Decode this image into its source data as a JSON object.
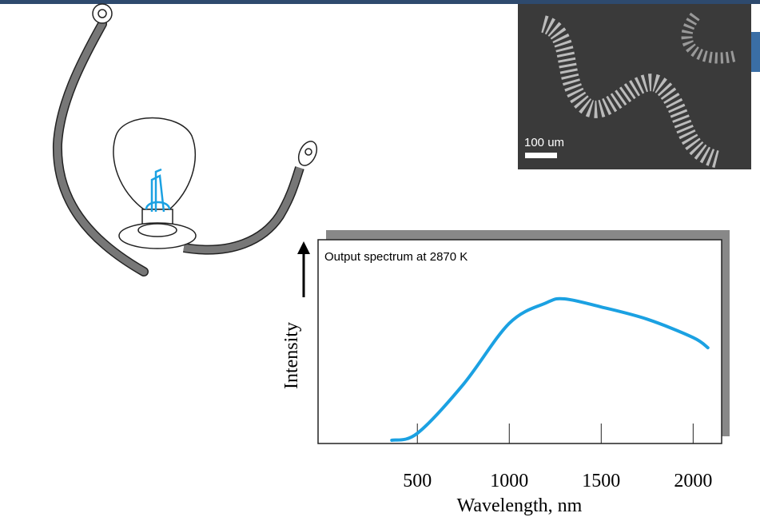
{
  "chart_data": {
    "type": "line",
    "title": "Output spectrum at 2870 K",
    "x_label": "Wavelength, nm",
    "y_label": "Intensity",
    "x": [
      361,
      500,
      750,
      1000,
      1200,
      1300,
      1500,
      1750,
      2000,
      2080
    ],
    "series": [
      {
        "color": "#1ba1e2",
        "values": [
          1.6,
          5,
          29,
          59,
          69,
          71,
          67,
          61,
          52,
          47
        ]
      }
    ],
    "xlim": [
      -40,
      2155
    ],
    "xticks": [
      500,
      1000,
      1500,
      2000
    ],
    "ylim": [
      0,
      100
    ]
  },
  "sem_image": {
    "scale_label": "100 um"
  }
}
